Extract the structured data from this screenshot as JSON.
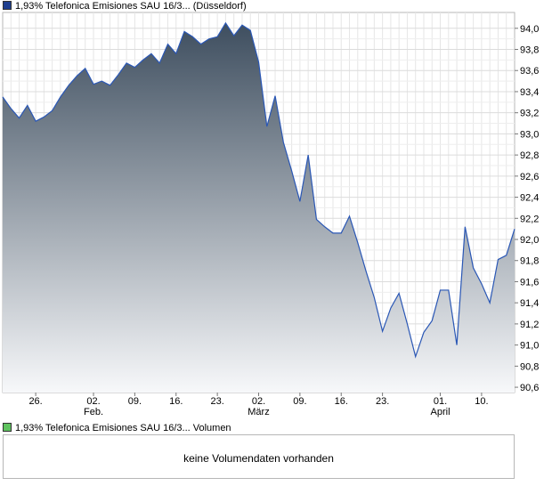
{
  "price_legend": {
    "label": "1,93% Telefonica Emisiones SAU 16/3... (Düsseldorf)",
    "color": "#1f3f8f"
  },
  "volume_legend": {
    "label": "1,93% Telefonica Emisiones SAU 16/3... Volumen",
    "color": "#5fc35f"
  },
  "volume_panel": {
    "message": "keine Volumendaten vorhanden"
  },
  "chart_data": {
    "type": "area",
    "series": [
      {
        "name": "1,93% Telefonica Emisiones SAU 16/3... (Düsseldorf)",
        "values": [
          93.35,
          93.24,
          93.15,
          93.27,
          93.12,
          93.16,
          93.22,
          93.35,
          93.46,
          93.55,
          93.62,
          93.47,
          93.5,
          93.46,
          93.56,
          93.67,
          93.63,
          93.7,
          93.76,
          93.67,
          93.85,
          93.76,
          93.97,
          93.92,
          93.85,
          93.9,
          93.92,
          94.05,
          93.93,
          94.03,
          93.98,
          93.68,
          93.07,
          93.36,
          92.92,
          92.65,
          92.36,
          92.8,
          92.19,
          92.12,
          92.06,
          92.06,
          92.22,
          91.97,
          91.7,
          91.45,
          91.13,
          91.35,
          91.49,
          91.2,
          90.89,
          91.12,
          91.23,
          91.52,
          91.52,
          91.0,
          92.12,
          91.73,
          91.58,
          91.4,
          91.81,
          91.85,
          92.1
        ]
      }
    ],
    "x_ticks": [
      {
        "index": 4,
        "day": "26.",
        "month": ""
      },
      {
        "index": 11,
        "day": "02.",
        "month": "Feb."
      },
      {
        "index": 16,
        "day": "09.",
        "month": ""
      },
      {
        "index": 21,
        "day": "16.",
        "month": ""
      },
      {
        "index": 26,
        "day": "23.",
        "month": ""
      },
      {
        "index": 31,
        "day": "02.",
        "month": "März"
      },
      {
        "index": 36,
        "day": "09.",
        "month": ""
      },
      {
        "index": 41,
        "day": "16.",
        "month": ""
      },
      {
        "index": 46,
        "day": "23.",
        "month": ""
      },
      {
        "index": 53,
        "day": "01.",
        "month": "April"
      },
      {
        "index": 58,
        "day": "10.",
        "month": ""
      }
    ],
    "y_ticks": [
      "94,0",
      "93,8",
      "93,6",
      "93,4",
      "93,2",
      "93,0",
      "92,8",
      "92,6",
      "92,4",
      "92,2",
      "92,0",
      "91,8",
      "91,6",
      "91,4",
      "91,2",
      "91,0",
      "90,8",
      "90,6"
    ],
    "ylim": [
      90.55,
      94.15
    ],
    "grid": true,
    "line_color": "#2a57b5",
    "fill_top_color": "#3e4e5f",
    "fill_bottom_color": "#f7f8fa"
  }
}
